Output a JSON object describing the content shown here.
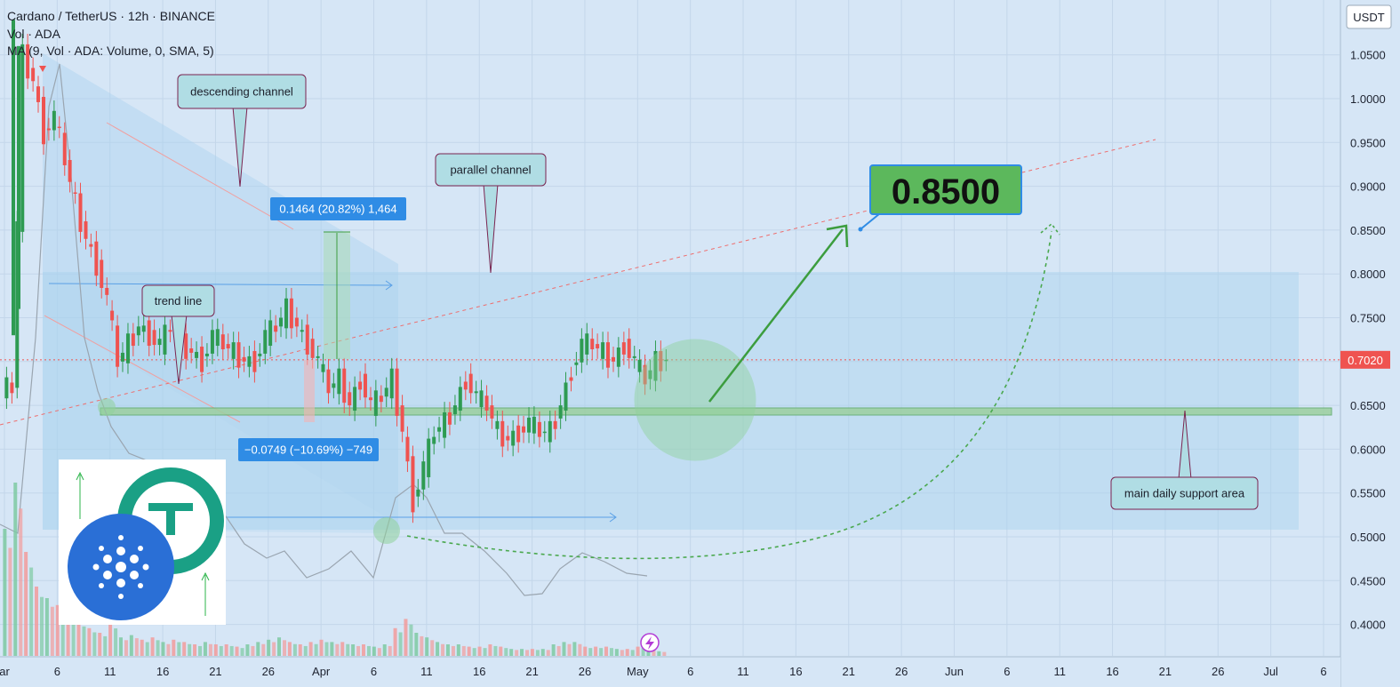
{
  "header": {
    "title": "Cardano / TetherUS · 12h · BINANCE",
    "volume_label": "Vol · ADA",
    "ma_label": "MA (9, Vol · ADA: Volume, 0, SMA, 5)"
  },
  "currency_badge": "USDT",
  "last_price_label": "0.7020",
  "colors": {
    "up": "#26a69a",
    "down": "#ef5350",
    "up_body": "#2e9b52",
    "channel_fill": "#a9d2ee",
    "support": "#9ccf9f",
    "projection": "#3c9d3e",
    "target_box": "#5cb85c",
    "measure_box": "#2f8ce5",
    "background": "#d6e6f6"
  },
  "annotations": {
    "descending_channel": "descending channel",
    "parallel_channel": "parallel channel",
    "trend_line": "trend line",
    "support_area": "main daily support area",
    "target": "0.8500",
    "measure_up": "0.1464 (20.82%) 1,464",
    "measure_down": "−0.0749 (−10.69%) −749"
  },
  "chart_data": {
    "type": "candlestick",
    "title": "Cardano / TetherUS · 12h · BINANCE",
    "symbol": "ADA/USDT",
    "interval": "12h",
    "exchange": "BINANCE",
    "y_axis": {
      "ticks": [
        0.4,
        0.45,
        0.5,
        0.55,
        0.6,
        0.65,
        0.7,
        0.75,
        0.8,
        0.85,
        0.9,
        0.95,
        1.0,
        1.05
      ],
      "ylim": [
        0.37,
        1.09
      ],
      "currency": "USDT"
    },
    "x_axis": {
      "ticks": [
        "ar",
        "6",
        "11",
        "16",
        "21",
        "26",
        "Apr",
        "6",
        "11",
        "16",
        "21",
        "26",
        "May",
        "6",
        "11",
        "16",
        "21",
        "26",
        "Jun",
        "6",
        "11",
        "16",
        "21",
        "26",
        "Jul",
        "6"
      ]
    },
    "last_price": 0.702,
    "support_level": 0.643,
    "target_price": 0.85,
    "price_series": [
      {
        "d": "Mar 1",
        "p": 0.67
      },
      {
        "d": "Mar 2",
        "p": 1.05
      },
      {
        "d": "Mar 3",
        "p": 1.02
      },
      {
        "d": "Mar 4",
        "p": 0.96
      },
      {
        "d": "Mar 5",
        "p": 0.98
      },
      {
        "d": "Mar 6",
        "p": 0.93
      },
      {
        "d": "Mar 7",
        "p": 0.88
      },
      {
        "d": "Mar 8",
        "p": 0.84
      },
      {
        "d": "Mar 9",
        "p": 0.81
      },
      {
        "d": "Mar 10",
        "p": 0.77
      },
      {
        "d": "Mar 11",
        "p": 0.7
      },
      {
        "d": "Mar 12",
        "p": 0.72
      },
      {
        "d": "Mar 13",
        "p": 0.74
      },
      {
        "d": "Mar 14",
        "p": 0.73
      },
      {
        "d": "Mar 15",
        "p": 0.72
      },
      {
        "d": "Mar 16",
        "p": 0.74
      },
      {
        "d": "Mar 17",
        "p": 0.72
      },
      {
        "d": "Mar 18",
        "p": 0.71
      },
      {
        "d": "Mar 19",
        "p": 0.7
      },
      {
        "d": "Mar 20",
        "p": 0.73
      },
      {
        "d": "Mar 21",
        "p": 0.72
      },
      {
        "d": "Mar 22",
        "p": 0.71
      },
      {
        "d": "Mar 23",
        "p": 0.7
      },
      {
        "d": "Mar 24",
        "p": 0.7
      },
      {
        "d": "Mar 25",
        "p": 0.73
      },
      {
        "d": "Mar 26",
        "p": 0.74
      },
      {
        "d": "Mar 27",
        "p": 0.76
      },
      {
        "d": "Mar 28",
        "p": 0.74
      },
      {
        "d": "Mar 29",
        "p": 0.72
      },
      {
        "d": "Mar 30",
        "p": 0.7
      },
      {
        "d": "Mar 31",
        "p": 0.67
      },
      {
        "d": "Apr 1",
        "p": 0.68
      },
      {
        "d": "Apr 2",
        "p": 0.65
      },
      {
        "d": "Apr 3",
        "p": 0.68
      },
      {
        "d": "Apr 4",
        "p": 0.65
      },
      {
        "d": "Apr 5",
        "p": 0.66
      },
      {
        "d": "Apr 6",
        "p": 0.68
      },
      {
        "d": "Apr 7",
        "p": 0.62
      },
      {
        "d": "Apr 8",
        "p": 0.54
      },
      {
        "d": "Apr 9",
        "p": 0.58
      },
      {
        "d": "Apr 10",
        "p": 0.62
      },
      {
        "d": "Apr 11",
        "p": 0.63
      },
      {
        "d": "Apr 12",
        "p": 0.65
      },
      {
        "d": "Apr 13",
        "p": 0.68
      },
      {
        "d": "Apr 14",
        "p": 0.66
      },
      {
        "d": "Apr 15",
        "p": 0.65
      },
      {
        "d": "Apr 16",
        "p": 0.62
      },
      {
        "d": "Apr 17",
        "p": 0.61
      },
      {
        "d": "Apr 18",
        "p": 0.62
      },
      {
        "d": "Apr 19",
        "p": 0.63
      },
      {
        "d": "Apr 20",
        "p": 0.62
      },
      {
        "d": "Apr 21",
        "p": 0.62
      },
      {
        "d": "Apr 22",
        "p": 0.65
      },
      {
        "d": "Apr 23",
        "p": 0.69
      },
      {
        "d": "Apr 24",
        "p": 0.72
      },
      {
        "d": "Apr 25",
        "p": 0.72
      },
      {
        "d": "Apr 26",
        "p": 0.71
      },
      {
        "d": "Apr 27",
        "p": 0.7
      },
      {
        "d": "Apr 28",
        "p": 0.72
      },
      {
        "d": "Apr 29",
        "p": 0.7
      },
      {
        "d": "Apr 30",
        "p": 0.68
      },
      {
        "d": "May 1",
        "p": 0.7
      },
      {
        "d": "May 2",
        "p": 0.702
      }
    ],
    "volume_bars": [
      {
        "d": "Mar 1",
        "v": 0.55,
        "up": true
      },
      {
        "d": "Mar 2",
        "v": 0.75,
        "up": true
      },
      {
        "d": "Mar 3",
        "v": 0.45,
        "up": false
      },
      {
        "d": "Mar 4",
        "v": 0.3,
        "up": false
      },
      {
        "d": "Mar 5",
        "v": 0.25,
        "up": true
      },
      {
        "d": "Mar 6",
        "v": 0.22,
        "up": false
      },
      {
        "d": "Mar 7",
        "v": 0.18,
        "up": false
      },
      {
        "d": "Mar 8",
        "v": 0.15,
        "up": false
      },
      {
        "d": "Mar 9",
        "v": 0.12,
        "up": false
      },
      {
        "d": "Mar 10",
        "v": 0.1,
        "up": false
      },
      {
        "d": "Mar 11",
        "v": 0.14,
        "up": false
      },
      {
        "d": "Mar 12",
        "v": 0.08,
        "up": true
      },
      {
        "d": "Mar 13",
        "v": 0.09,
        "up": true
      },
      {
        "d": "Mar 14",
        "v": 0.07,
        "up": false
      },
      {
        "d": "Mar 15",
        "v": 0.08,
        "up": false
      },
      {
        "d": "Mar 16",
        "v": 0.06,
        "up": true
      },
      {
        "d": "Mar 17",
        "v": 0.07,
        "up": false
      },
      {
        "d": "Mar 18",
        "v": 0.06,
        "up": false
      },
      {
        "d": "Mar 19",
        "v": 0.05,
        "up": false
      },
      {
        "d": "Mar 20",
        "v": 0.06,
        "up": true
      },
      {
        "d": "Mar 21",
        "v": 0.05,
        "up": false
      },
      {
        "d": "Mar 22",
        "v": 0.05,
        "up": false
      },
      {
        "d": "Mar 23",
        "v": 0.04,
        "up": false
      },
      {
        "d": "Mar 24",
        "v": 0.05,
        "up": true
      },
      {
        "d": "Mar 25",
        "v": 0.06,
        "up": true
      },
      {
        "d": "Mar 26",
        "v": 0.07,
        "up": true
      },
      {
        "d": "Mar 27",
        "v": 0.08,
        "up": true
      },
      {
        "d": "Mar 28",
        "v": 0.06,
        "up": false
      },
      {
        "d": "Mar 29",
        "v": 0.05,
        "up": false
      },
      {
        "d": "Mar 30",
        "v": 0.06,
        "up": false
      },
      {
        "d": "Mar 31",
        "v": 0.07,
        "up": false
      },
      {
        "d": "Apr 1",
        "v": 0.06,
        "up": true
      },
      {
        "d": "Apr 2",
        "v": 0.06,
        "up": false
      },
      {
        "d": "Apr 3",
        "v": 0.05,
        "up": true
      },
      {
        "d": "Apr 4",
        "v": 0.05,
        "up": false
      },
      {
        "d": "Apr 5",
        "v": 0.04,
        "up": true
      },
      {
        "d": "Apr 6",
        "v": 0.05,
        "up": true
      },
      {
        "d": "Apr 7",
        "v": 0.12,
        "up": false
      },
      {
        "d": "Apr 8",
        "v": 0.16,
        "up": false
      },
      {
        "d": "Apr 9",
        "v": 0.1,
        "up": true
      },
      {
        "d": "Apr 10",
        "v": 0.08,
        "up": true
      },
      {
        "d": "Apr 11",
        "v": 0.06,
        "up": true
      },
      {
        "d": "Apr 12",
        "v": 0.05,
        "up": true
      },
      {
        "d": "Apr 13",
        "v": 0.05,
        "up": true
      },
      {
        "d": "Apr 14",
        "v": 0.04,
        "up": false
      },
      {
        "d": "Apr 15",
        "v": 0.04,
        "up": false
      },
      {
        "d": "Apr 16",
        "v": 0.05,
        "up": false
      },
      {
        "d": "Apr 17",
        "v": 0.04,
        "up": false
      },
      {
        "d": "Apr 18",
        "v": 0.03,
        "up": true
      },
      {
        "d": "Apr 19",
        "v": 0.03,
        "up": true
      },
      {
        "d": "Apr 20",
        "v": 0.03,
        "up": false
      },
      {
        "d": "Apr 21",
        "v": 0.03,
        "up": true
      },
      {
        "d": "Apr 22",
        "v": 0.05,
        "up": true
      },
      {
        "d": "Apr 23",
        "v": 0.06,
        "up": true
      },
      {
        "d": "Apr 24",
        "v": 0.06,
        "up": true
      },
      {
        "d": "Apr 25",
        "v": 0.04,
        "up": false
      },
      {
        "d": "Apr 26",
        "v": 0.04,
        "up": false
      },
      {
        "d": "Apr 27",
        "v": 0.04,
        "up": false
      },
      {
        "d": "Apr 28",
        "v": 0.03,
        "up": true
      },
      {
        "d": "Apr 29",
        "v": 0.03,
        "up": false
      },
      {
        "d": "Apr 30",
        "v": 0.04,
        "up": false
      },
      {
        "d": "May 1",
        "v": 0.03,
        "up": true
      },
      {
        "d": "May 2",
        "v": 0.02,
        "up": true
      }
    ]
  }
}
